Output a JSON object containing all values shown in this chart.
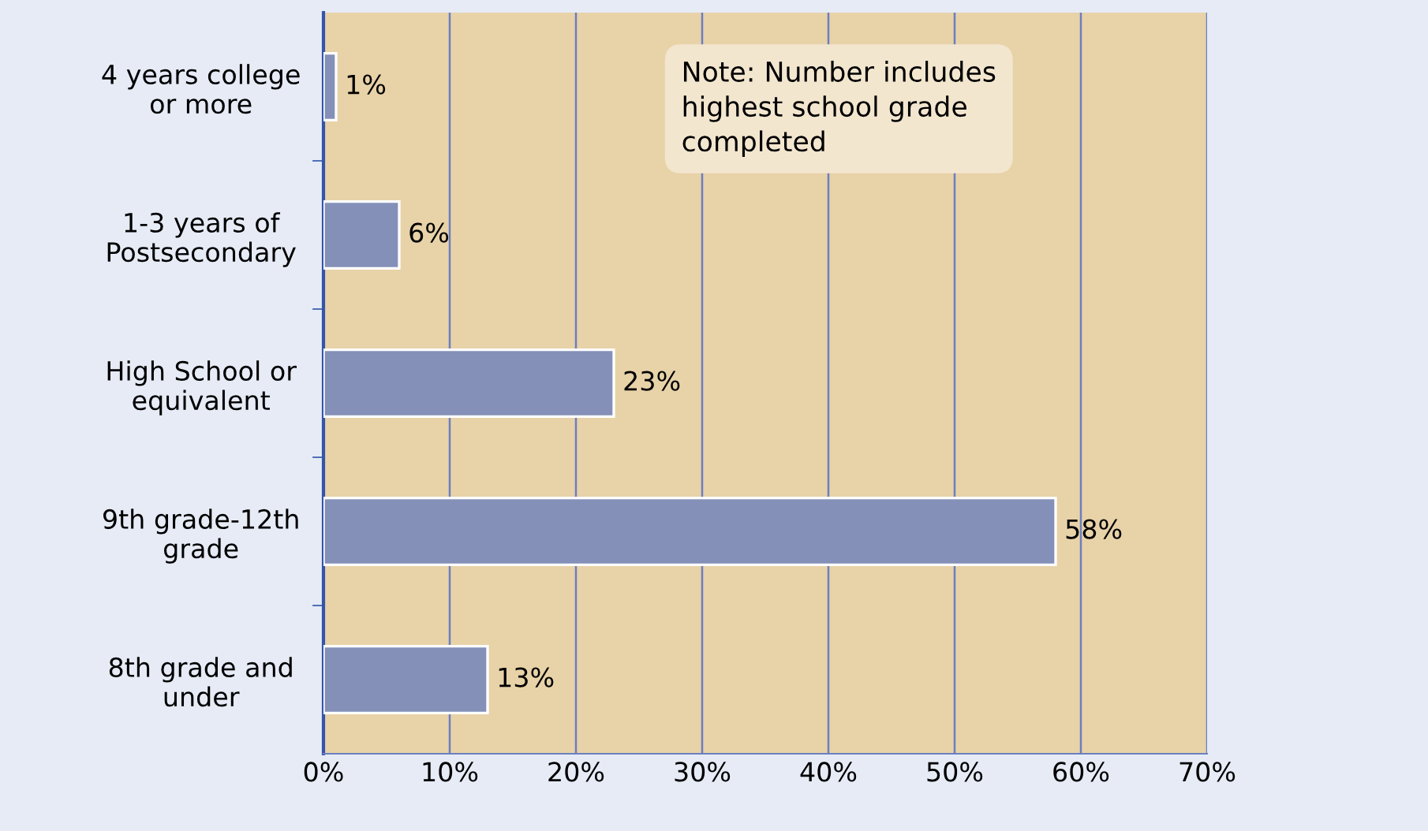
{
  "chart_data": {
    "type": "bar",
    "orientation": "horizontal",
    "categories": [
      "4 years college\nor more",
      "1-3 years of\nPostsecondary",
      "High School or\nequivalent",
      "9th grade-12th\ngrade",
      "8th grade and\nunder"
    ],
    "values": [
      1,
      6,
      23,
      58,
      13
    ],
    "value_labels": [
      "1%",
      "6%",
      "23%",
      "58%",
      "13%"
    ],
    "color": "#8490b8",
    "xlim": [
      0,
      70
    ],
    "xticks": [
      {
        "value": 0,
        "label": "0%"
      },
      {
        "value": 10,
        "label": "10%"
      },
      {
        "value": 20,
        "label": "20%"
      },
      {
        "value": 30,
        "label": "30%"
      },
      {
        "value": 40,
        "label": "40%"
      },
      {
        "value": 50,
        "label": "50%"
      },
      {
        "value": 60,
        "label": "60%"
      },
      {
        "value": 70,
        "label": "70%"
      }
    ],
    "grid": "x",
    "annotations": [
      "Note: Number includes\nhighest school grade\ncompleted"
    ]
  }
}
